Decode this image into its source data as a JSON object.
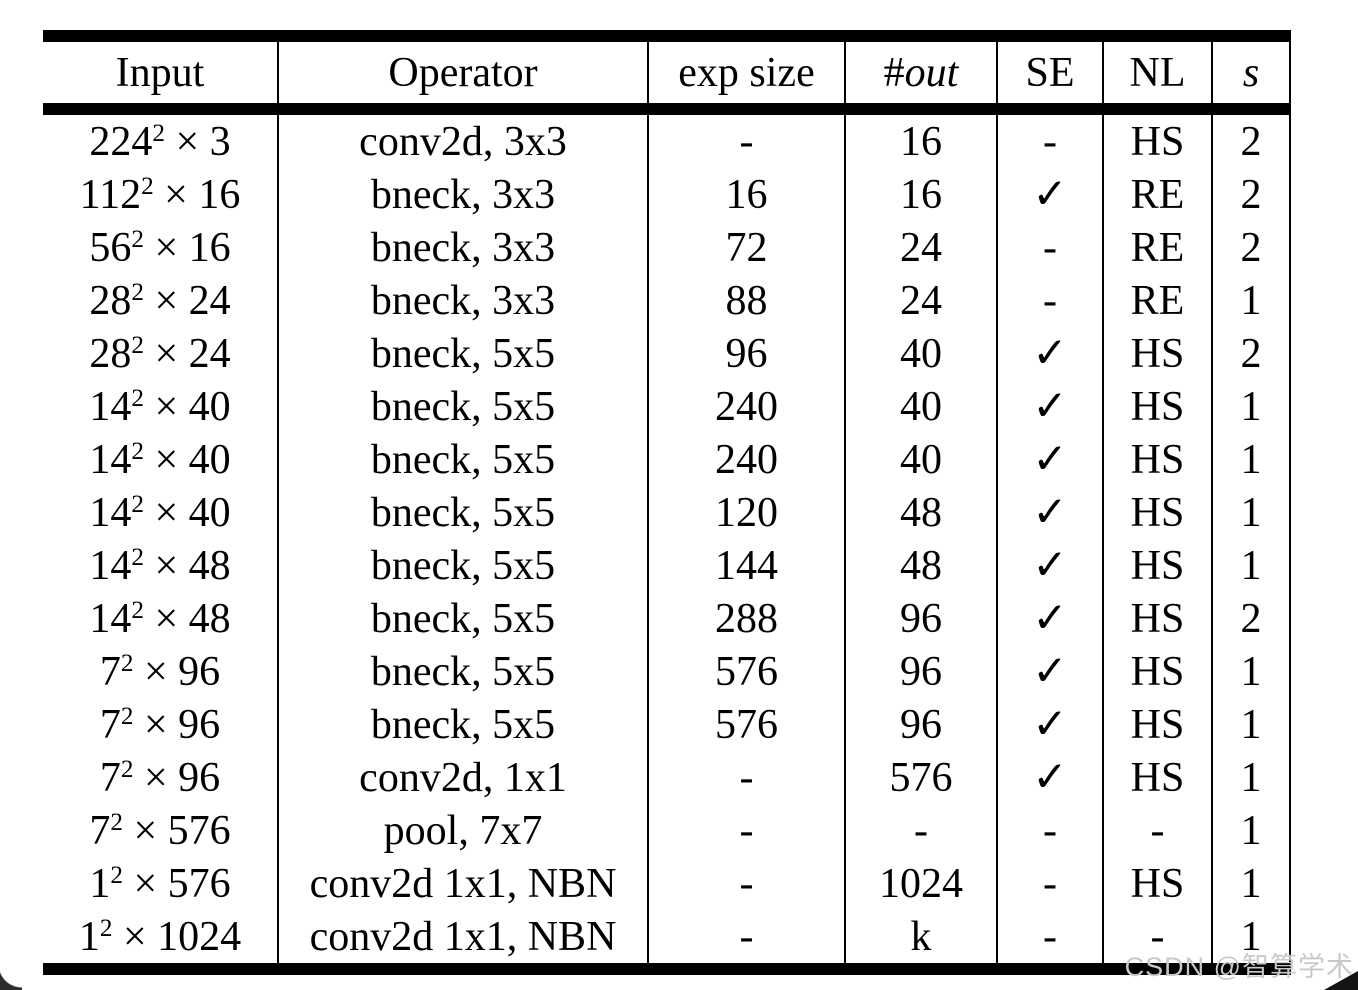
{
  "page": {
    "background_color": "#ffffff",
    "text_color": "#000000",
    "rule_color": "#000000"
  },
  "table": {
    "columns": [
      {
        "key": "input",
        "prefix": "",
        "label": "Input",
        "italic": false
      },
      {
        "key": "operator",
        "prefix": "",
        "label": "Operator",
        "italic": false
      },
      {
        "key": "exp-size",
        "prefix": "",
        "label": "exp size",
        "italic": false
      },
      {
        "key": "out",
        "prefix": "#",
        "label": "out",
        "italic": true
      },
      {
        "key": "se",
        "prefix": "",
        "label": "SE",
        "italic": false
      },
      {
        "key": "nl",
        "prefix": "",
        "label": "NL",
        "italic": false
      },
      {
        "key": "s",
        "prefix": "",
        "label": "s",
        "italic": true
      }
    ],
    "check_symbol": "✓",
    "empty_symbol": "-",
    "rows": [
      [
        "224^2 × 3",
        "conv2d, 3x3",
        "-",
        "16",
        "-",
        "HS",
        "2"
      ],
      [
        "112^2 × 16",
        "bneck, 3x3",
        "16",
        "16",
        "✓",
        "RE",
        "2"
      ],
      [
        "56^2 × 16",
        "bneck, 3x3",
        "72",
        "24",
        "-",
        "RE",
        "2"
      ],
      [
        "28^2 × 24",
        "bneck, 3x3",
        "88",
        "24",
        "-",
        "RE",
        "1"
      ],
      [
        "28^2 × 24",
        "bneck, 5x5",
        "96",
        "40",
        "✓",
        "HS",
        "2"
      ],
      [
        "14^2 × 40",
        "bneck, 5x5",
        "240",
        "40",
        "✓",
        "HS",
        "1"
      ],
      [
        "14^2 × 40",
        "bneck, 5x5",
        "240",
        "40",
        "✓",
        "HS",
        "1"
      ],
      [
        "14^2 × 40",
        "bneck, 5x5",
        "120",
        "48",
        "✓",
        "HS",
        "1"
      ],
      [
        "14^2 × 48",
        "bneck, 5x5",
        "144",
        "48",
        "✓",
        "HS",
        "1"
      ],
      [
        "14^2 × 48",
        "bneck, 5x5",
        "288",
        "96",
        "✓",
        "HS",
        "2"
      ],
      [
        "7^2 × 96",
        "bneck, 5x5",
        "576",
        "96",
        "✓",
        "HS",
        "1"
      ],
      [
        "7^2 × 96",
        "bneck, 5x5",
        "576",
        "96",
        "✓",
        "HS",
        "1"
      ],
      [
        "7^2 × 96",
        "conv2d, 1x1",
        "-",
        "576",
        "✓",
        "HS",
        "1"
      ],
      [
        "7^2 × 576",
        "pool, 7x7",
        "-",
        "-",
        "-",
        "-",
        "1"
      ],
      [
        "1^2 × 576",
        "conv2d 1x1, NBN",
        "-",
        "1024",
        "-",
        "HS",
        "1"
      ],
      [
        "1^2 × 1024",
        "conv2d 1x1, NBN",
        "-",
        "k",
        "-",
        "-",
        "1"
      ]
    ]
  },
  "watermark": {
    "text": "CSDN @智算学术",
    "color": "#c9c9c9"
  }
}
